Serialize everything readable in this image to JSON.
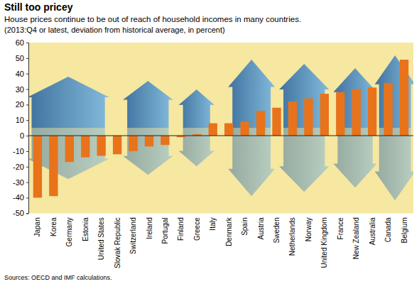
{
  "chart_data": {
    "type": "bar",
    "title": "Still too pricey",
    "subtitle": "House prices continue to be out of reach of household incomes in many countries.",
    "note": "(2013:Q4 or latest, deviation from historical average, in percent)",
    "source": "Sources: OECD and IMF calculations.",
    "categories": [
      "Japan",
      "Korea",
      "Germany",
      "Estonia",
      "United States",
      "Slovak Republic",
      "Switzerland",
      "Ireland",
      "Portugal",
      "Finland",
      "Greece",
      "Italy",
      "Denmark",
      "Spain",
      "Austria",
      "Sweden",
      "Netherlands",
      "Norway",
      "United Kingdom",
      "France",
      "New Zealand",
      "Australia",
      "Canada",
      "Belgium"
    ],
    "values": [
      -40,
      -39,
      -17,
      -14,
      -13,
      -12,
      -10,
      -7,
      -6,
      -1,
      1,
      8,
      8,
      9,
      16,
      18,
      22,
      24,
      27,
      28,
      30,
      31,
      34,
      49
    ],
    "color": "#e8731a",
    "ylim": [
      -50,
      60
    ],
    "yticks": [
      -50,
      -40,
      -30,
      -20,
      -10,
      0,
      10,
      20,
      30,
      40,
      50,
      60
    ],
    "grid": false
  }
}
